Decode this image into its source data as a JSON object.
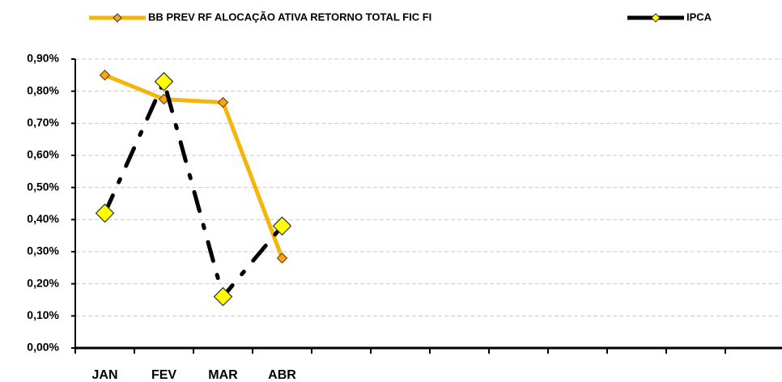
{
  "chart_data": {
    "type": "line",
    "categories": [
      "JAN",
      "FEV",
      "MAR",
      "ABR",
      null,
      null,
      null,
      null,
      null,
      null,
      null,
      null
    ],
    "series": [
      {
        "name": "BB PREV RF ALOCAÇÃO ATIVA RETORNO TOTAL FIC FI",
        "color": "#f5b50a",
        "values": [
          0.85,
          0.775,
          0.765,
          0.28,
          null,
          null,
          null,
          null,
          null,
          null,
          null,
          null
        ]
      },
      {
        "name": "IPCA",
        "color": "#000000",
        "values": [
          0.42,
          0.83,
          0.16,
          0.38,
          null,
          null,
          null,
          null,
          null,
          null,
          null,
          null
        ]
      }
    ],
    "ylim": [
      0,
      0.9
    ],
    "yticks": [
      {
        "value": 0,
        "label": "0,00%"
      },
      {
        "value": 0.1,
        "label": "0,10%"
      },
      {
        "value": 0.2,
        "label": "0,20%"
      },
      {
        "value": 0.3,
        "label": "0,30%"
      },
      {
        "value": 0.4,
        "label": "0,40%"
      },
      {
        "value": 0.5,
        "label": "0,50%"
      },
      {
        "value": 0.6,
        "label": "0,60%"
      },
      {
        "value": 0.7,
        "label": "0,70%"
      },
      {
        "value": 0.8,
        "label": "0,80%"
      },
      {
        "value": 0.9,
        "label": "0,90%"
      }
    ],
    "grid": true,
    "legend": "top"
  }
}
